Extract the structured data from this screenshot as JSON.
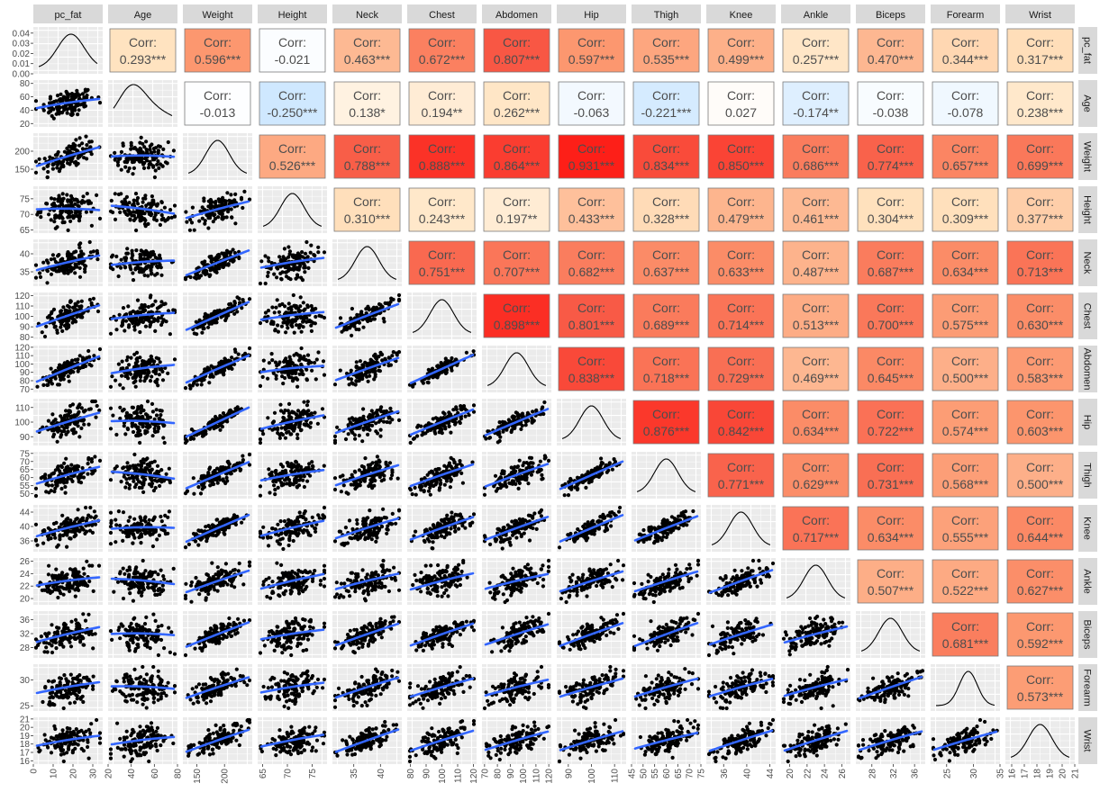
{
  "chart_data": {
    "type": "scatter-matrix",
    "variables": [
      "pc_fat",
      "Age",
      "Weight",
      "Height",
      "Neck",
      "Chest",
      "Abdomen",
      "Hip",
      "Thigh",
      "Knee",
      "Ankle",
      "Biceps",
      "Forearm",
      "Wrist"
    ],
    "corr_prefix": "Corr:",
    "correlations": [
      [
        "",
        "0.293***",
        "0.596***",
        "-0.021",
        "0.463***",
        "0.672***",
        "0.807***",
        "0.597***",
        "0.535***",
        "0.499***",
        "0.257***",
        "0.470***",
        "0.344***",
        "0.317***"
      ],
      [
        "",
        "",
        "-0.013",
        "-0.250***",
        "0.138*",
        "0.194**",
        "0.262***",
        "-0.063",
        "-0.221***",
        "0.027",
        "-0.174**",
        "-0.038",
        "-0.078",
        "0.238***"
      ],
      [
        "",
        "",
        "",
        "0.526***",
        "0.788***",
        "0.888***",
        "0.864***",
        "0.931***",
        "0.834***",
        "0.850***",
        "0.686***",
        "0.774***",
        "0.657***",
        "0.699***"
      ],
      [
        "",
        "",
        "",
        "",
        "0.310***",
        "0.243***",
        "0.197**",
        "0.433***",
        "0.328***",
        "0.479***",
        "0.461***",
        "0.304***",
        "0.309***",
        "0.377***"
      ],
      [
        "",
        "",
        "",
        "",
        "",
        "0.751***",
        "0.707***",
        "0.682***",
        "0.637***",
        "0.633***",
        "0.487***",
        "0.687***",
        "0.634***",
        "0.713***"
      ],
      [
        "",
        "",
        "",
        "",
        "",
        "",
        "0.898***",
        "0.801***",
        "0.689***",
        "0.714***",
        "0.513***",
        "0.700***",
        "0.575***",
        "0.630***"
      ],
      [
        "",
        "",
        "",
        "",
        "",
        "",
        "",
        "0.838***",
        "0.718***",
        "0.729***",
        "0.469***",
        "0.645***",
        "0.500***",
        "0.583***"
      ],
      [
        "",
        "",
        "",
        "",
        "",
        "",
        "",
        "",
        "0.876***",
        "0.842***",
        "0.634***",
        "0.722***",
        "0.574***",
        "0.603***"
      ],
      [
        "",
        "",
        "",
        "",
        "",
        "",
        "",
        "",
        "",
        "0.771***",
        "0.629***",
        "0.731***",
        "0.568***",
        "0.500***"
      ],
      [
        "",
        "",
        "",
        "",
        "",
        "",
        "",
        "",
        "",
        "",
        "0.717***",
        "0.634***",
        "0.555***",
        "0.644***"
      ],
      [
        "",
        "",
        "",
        "",
        "",
        "",
        "",
        "",
        "",
        "",
        "",
        "0.507***",
        "0.522***",
        "0.627***"
      ],
      [
        "",
        "",
        "",
        "",
        "",
        "",
        "",
        "",
        "",
        "",
        "",
        "",
        "0.681***",
        "0.592***"
      ],
      [
        "",
        "",
        "",
        "",
        "",
        "",
        "",
        "",
        "",
        "",
        "",
        "",
        "",
        "0.573***"
      ],
      [
        "",
        "",
        "",
        "",
        "",
        "",
        "",
        "",
        "",
        "",
        "",
        "",
        "",
        ""
      ]
    ],
    "x_axis_ticks": [
      [
        "0",
        "10",
        "20",
        "30"
      ],
      [
        "20",
        "40",
        "60",
        "80"
      ],
      [
        "150",
        "200"
      ],
      [
        "65",
        "70",
        "75"
      ],
      [
        "35",
        "40"
      ],
      [
        "80",
        "90",
        "100",
        "110",
        "120"
      ],
      [
        "70",
        "80",
        "90",
        "100",
        "110",
        "120"
      ],
      [
        "90",
        "100",
        "110"
      ],
      [
        "45",
        "50",
        "55",
        "60",
        "65",
        "70",
        "75"
      ],
      [
        "36",
        "40",
        "44"
      ],
      [
        "20",
        "22",
        "24",
        "26"
      ],
      [
        "28",
        "32",
        "36"
      ],
      [
        "25",
        "30",
        "35"
      ],
      [
        "16",
        "17",
        "18",
        "19",
        "20",
        "21"
      ]
    ],
    "x_axis_ranges": [
      [
        0,
        35
      ],
      [
        20,
        80
      ],
      [
        125,
        250
      ],
      [
        64,
        78
      ],
      [
        31,
        44
      ],
      [
        78,
        122
      ],
      [
        68,
        122
      ],
      [
        85,
        115
      ],
      [
        45,
        75
      ],
      [
        33,
        45
      ],
      [
        19,
        27
      ],
      [
        25,
        38
      ],
      [
        22,
        35
      ],
      [
        15.5,
        21
      ]
    ],
    "y_axis_ticks": [
      [
        "0.00",
        "0.01",
        "0.02",
        "0.03",
        "0.04"
      ],
      [
        "20",
        "40",
        "60",
        "80"
      ],
      [
        "150",
        "200"
      ],
      [
        "65",
        "70",
        "75"
      ],
      [
        "35",
        "40"
      ],
      [
        "80",
        "90",
        "100",
        "110",
        "120"
      ],
      [
        "70",
        "80",
        "90",
        "100",
        "110",
        "120"
      ],
      [
        "90",
        "100",
        "110"
      ],
      [
        "50",
        "55",
        "60",
        "65",
        "70",
        "75"
      ],
      [
        "36",
        "40",
        "44"
      ],
      [
        "20",
        "22",
        "24",
        "26"
      ],
      [
        "28",
        "32",
        "36"
      ],
      [
        "25",
        "30"
      ],
      [
        "16",
        "17",
        "18",
        "19",
        "20",
        "21"
      ]
    ],
    "y_axis_ranges": [
      [
        0,
        0.046
      ],
      [
        15,
        85
      ],
      [
        120,
        250
      ],
      [
        64,
        79
      ],
      [
        31,
        44
      ],
      [
        78,
        123
      ],
      [
        66,
        122
      ],
      [
        84,
        116
      ],
      [
        47,
        76
      ],
      [
        33,
        46
      ],
      [
        19,
        26.5
      ],
      [
        25,
        38.5
      ],
      [
        24,
        33
      ],
      [
        15.6,
        21.2
      ]
    ],
    "panels": {
      "upper": "correlation coefficient with significance stars",
      "diagonal": "density curve",
      "lower": "scatter with loess smooth"
    },
    "colors": {
      "strip_bg": "#d9d9d9",
      "panel_bg": "#ebebeb",
      "grid": "#ffffff",
      "point": "#000000",
      "smooth": "#3366ff",
      "corr_low": "#cfe8ff",
      "corr_zero": "#ffffff",
      "corr_high": "#ff0000"
    }
  }
}
